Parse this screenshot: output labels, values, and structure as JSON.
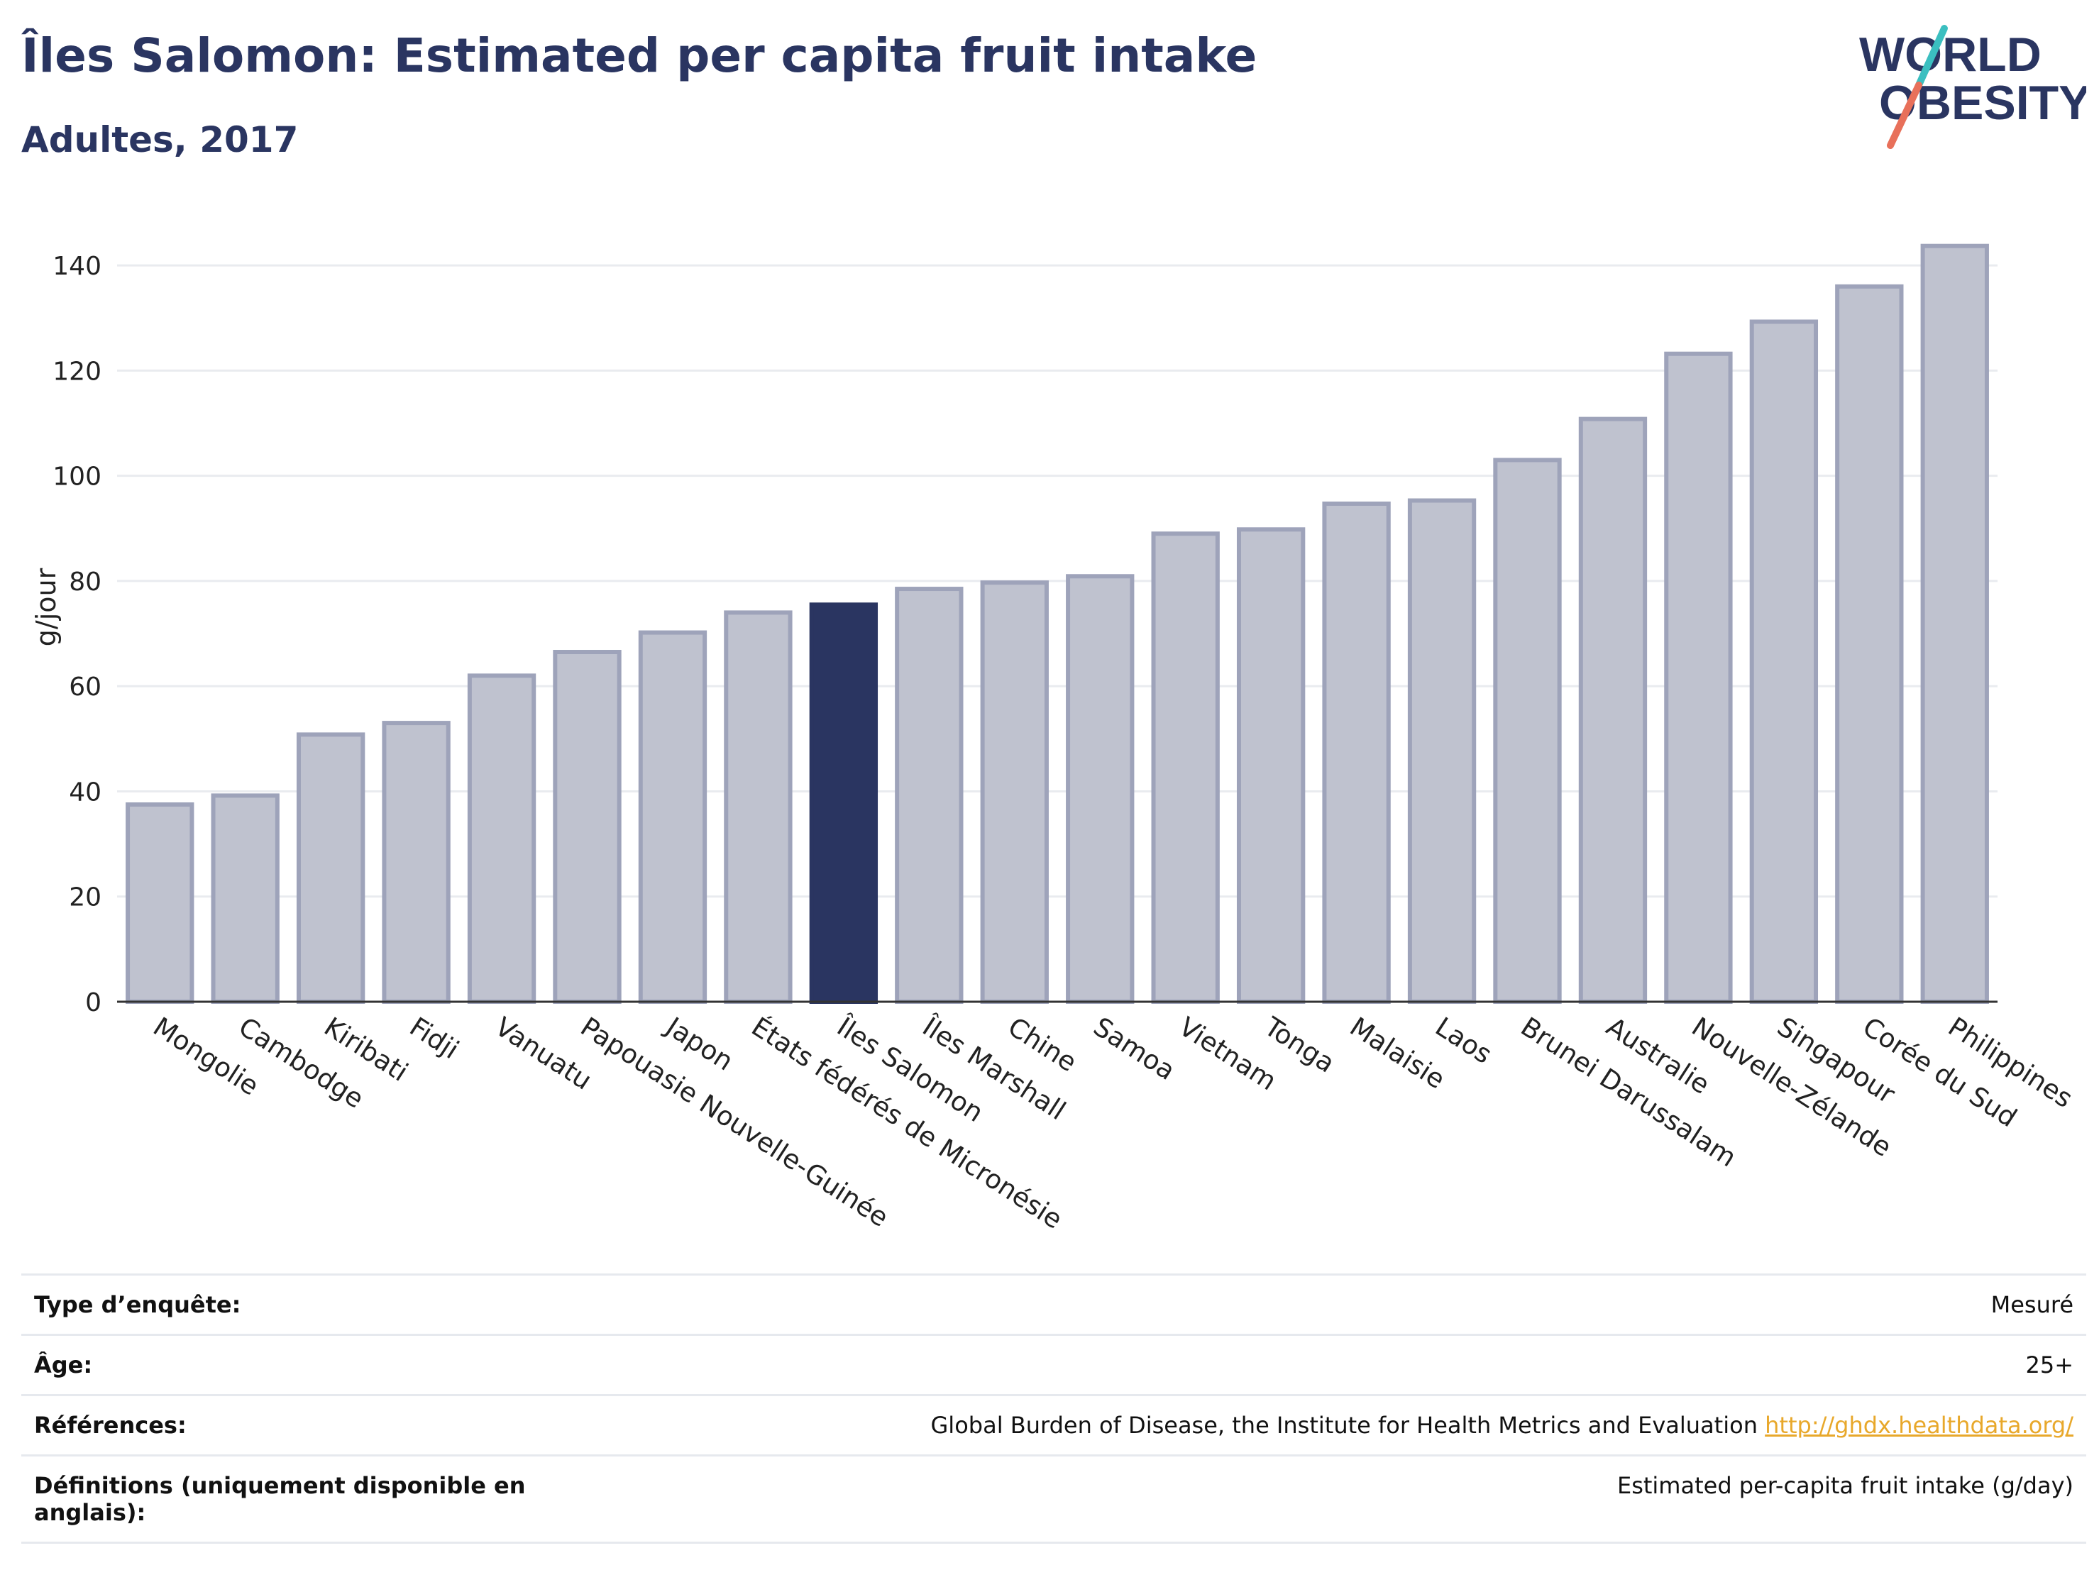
{
  "header": {
    "title": "Îles Salomon: Estimated per capita fruit intake",
    "subtitle": "Adultes, 2017"
  },
  "logo": {
    "line1": "WORLD",
    "line2": "OBESITY",
    "colors": {
      "text": "#2a3561",
      "slash_top": "#3bbfc0",
      "slash_bottom": "#e8705a"
    }
  },
  "colors": {
    "bar_fill": "#bfc2cf",
    "bar_stroke": "#9ea3ba",
    "highlight": "#2a3561",
    "grid": "#e9ebef",
    "axis": "#333333"
  },
  "chart_data": {
    "type": "bar",
    "categories": [
      "Mongolie",
      "Cambodge",
      "Kiribati",
      "Fidji",
      "Vanuatu",
      "Papouasie Nouvelle-Guinée",
      "Japon",
      "États fédérés de Micronésie",
      "Îles Salomon",
      "Îles Marshall",
      "Chine",
      "Samoa",
      "Vietnam",
      "Tonga",
      "Malaisie",
      "Laos",
      "Brunei Darussalam",
      "Australie",
      "Nouvelle-Zélande",
      "Singapour",
      "Corée du Sud",
      "Philippines"
    ],
    "values": [
      37.5,
      39.2,
      50.8,
      53,
      62,
      66.5,
      70.2,
      74,
      75.5,
      78.5,
      79.7,
      80.9,
      89,
      89.8,
      94.7,
      95.3,
      103,
      110.8,
      123.2,
      129.3,
      136,
      143.7
    ],
    "highlight": "Îles Salomon",
    "ylabel": "g/jour",
    "xlabel": "",
    "ylim": [
      0,
      150
    ],
    "yticks": [
      0,
      20,
      40,
      60,
      80,
      100,
      120,
      140
    ],
    "grid": true
  },
  "info": {
    "rows": [
      {
        "key": "Type d’enquête:",
        "value": "Mesuré"
      },
      {
        "key": "Âge:",
        "value": "25+"
      },
      {
        "key": "Références:",
        "value": "Global Burden of Disease, the Institute for Health Metrics and Evaluation",
        "link": "http://ghdx.healthdata.org/"
      },
      {
        "key": "Définitions (uniquement disponible en anglais):",
        "value": "Estimated per-capita fruit intake (g/day)"
      }
    ]
  }
}
